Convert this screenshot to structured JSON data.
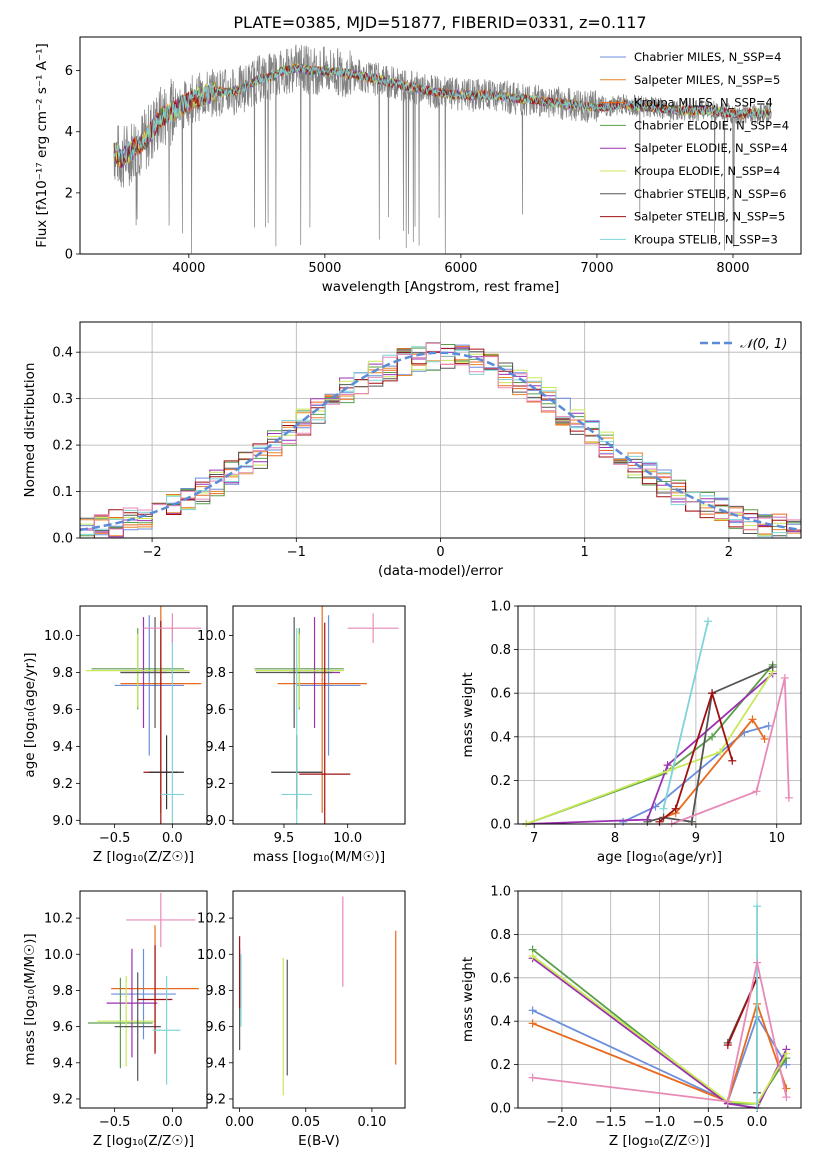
{
  "figure": {
    "title": "PLATE=0385, MJD=51877, FIBERID=0331, z=0.117"
  },
  "chart_data": [
    {
      "id": "spectrum",
      "type": "line",
      "xlabel": "wavelength [Angstrom, rest frame]",
      "ylabel": "Flux [fλ10⁻¹⁷ erg cm⁻² s⁻¹ A⁻¹]",
      "xlim": [
        3200,
        8500
      ],
      "ylim": [
        0,
        7.1
      ],
      "xticks": [
        4000,
        5000,
        6000,
        7000,
        8000
      ],
      "yticks": [
        0,
        2,
        4,
        6
      ],
      "grid": false,
      "legend_position": "right",
      "data_color": "#808080",
      "data_profile": {
        "x": [
          3450,
          3500,
          3560,
          3600,
          3680,
          3720,
          3800,
          3900,
          4000,
          4100,
          4200,
          4300,
          4400,
          4500,
          4600,
          4700,
          4800,
          4900,
          5000,
          5200,
          5400,
          5600,
          5800,
          6000,
          6200,
          6400,
          6600,
          6800,
          7000,
          7200,
          7400,
          7600,
          7800,
          8000,
          8200,
          8280
        ],
        "y": [
          3.4,
          3.1,
          3.3,
          3.5,
          3.7,
          4.0,
          4.5,
          4.7,
          5.0,
          5.2,
          5.3,
          5.3,
          5.4,
          5.7,
          5.8,
          6.0,
          6.1,
          6.0,
          6.0,
          5.9,
          5.7,
          5.5,
          5.3,
          5.2,
          5.2,
          5.1,
          5.0,
          4.9,
          4.8,
          4.9,
          4.8,
          4.7,
          4.7,
          4.6,
          4.6,
          4.6
        ]
      },
      "series": [
        {
          "name": "Chabrier MILES, N_SSP=4",
          "color": "#6b8fdc"
        },
        {
          "name": "Salpeter MILES, N_SSP=5",
          "color": "#e8862a"
        },
        {
          "name": "Kroupa MILES, N_SSP=4",
          "color": "#e86a1e"
        },
        {
          "name": "Chabrier ELODIE, N_SSP=4",
          "color": "#5a9e4a"
        },
        {
          "name": "Salpeter ELODIE, N_SSP=4",
          "color": "#9b30b0"
        },
        {
          "name": "Kroupa ELODIE, N_SSP=4",
          "color": "#c8e85a"
        },
        {
          "name": "Chabrier STELIB, N_SSP=6",
          "color": "#555555"
        },
        {
          "name": "Salpeter STELIB, N_SSP=5",
          "color": "#a01010"
        },
        {
          "name": "Kroupa STELIB, N_SSP=3",
          "color": "#7fd4d8"
        }
      ]
    },
    {
      "id": "residuals",
      "type": "histogram",
      "xlabel": "(data-model)/error",
      "ylabel": "Normed distribution",
      "xlim": [
        -2.5,
        2.5
      ],
      "ylim": [
        0,
        0.465
      ],
      "xticks": [
        -2,
        -1,
        0,
        1,
        2
      ],
      "xtick_labels": [
        "−2",
        "−1",
        "0",
        "1",
        "2"
      ],
      "yticks": [
        0.0,
        0.1,
        0.2,
        0.3,
        0.4
      ],
      "grid": true,
      "legend_position": "top-right",
      "normal_curve": {
        "name": "𝒩(0, 1)",
        "color": "#5b8bd9"
      },
      "bin_width": 0.1,
      "colors": [
        "#6b8fdc",
        "#e8862a",
        "#e86a1e",
        "#5a9e4a",
        "#9b30b0",
        "#c8e85a",
        "#555555",
        "#a01010",
        "#7fd4d8",
        "#e88ab8"
      ]
    },
    {
      "id": "age_vs_Z",
      "type": "scatter",
      "xlabel": "Z [log₁₀(Z/Z☉)]",
      "ylabel": "age  [log₁₀(age/yr)]",
      "xlim": [
        -0.8,
        0.3
      ],
      "ylim": [
        8.98,
        10.16
      ],
      "xticks": [
        -0.5,
        0.0
      ],
      "xtick_labels": [
        "−0.5",
        "0.0"
      ],
      "yticks": [
        9.0,
        9.2,
        9.4,
        9.6,
        9.8,
        10.0
      ],
      "grid": false,
      "points": [
        {
          "x": -0.2,
          "y": 9.73,
          "xerr": 0.3,
          "yerr": 0.38,
          "color": "#6b8fdc"
        },
        {
          "x": -0.1,
          "y": 9.74,
          "xerr": 0.35,
          "yerr": 0.7,
          "color": "#e86a1e"
        },
        {
          "x": -0.3,
          "y": 9.82,
          "xerr": 0.4,
          "yerr": 0.22,
          "color": "#5a9e4a"
        },
        {
          "x": -0.25,
          "y": 9.8,
          "xerr": 0.2,
          "yerr": 0.3,
          "color": "#9b30b0"
        },
        {
          "x": -0.3,
          "y": 9.81,
          "xerr": 0.45,
          "yerr": 0.2,
          "color": "#c8e85a"
        },
        {
          "x": -0.15,
          "y": 9.8,
          "xerr": 0.3,
          "yerr": 0.3,
          "color": "#555555"
        },
        {
          "x": -0.1,
          "y": 9.26,
          "xerr": 0.15,
          "yerr": 0.82,
          "color": "#a01010"
        },
        {
          "x": -0.05,
          "y": 9.26,
          "xerr": 0.15,
          "yerr": 0.2,
          "color": "#333333"
        },
        {
          "x": 0.0,
          "y": 9.14,
          "xerr": 0.1,
          "yerr": 0.9,
          "color": "#7fd4d8"
        },
        {
          "x": 0.0,
          "y": 10.04,
          "xerr": 0.25,
          "yerr": 0.08,
          "color": "#e88ab8"
        }
      ]
    },
    {
      "id": "age_vs_mass",
      "type": "scatter",
      "xlabel": "mass [log₁₀(M/M☉)]",
      "ylabel": "",
      "xlim": [
        9.1,
        10.45
      ],
      "ylim": [
        8.98,
        10.16
      ],
      "xticks": [
        9.5,
        10.0
      ],
      "xtick_labels": [
        "9.5",
        "10.0"
      ],
      "yticks": [
        9.0,
        9.2,
        9.4,
        9.6,
        9.8,
        10.0
      ],
      "grid": false,
      "points": [
        {
          "x": 9.85,
          "y": 9.73,
          "xerr": 0.25,
          "yerr": 0.38,
          "color": "#6b8fdc"
        },
        {
          "x": 9.8,
          "y": 9.74,
          "xerr": 0.35,
          "yerr": 0.7,
          "color": "#e86a1e"
        },
        {
          "x": 9.62,
          "y": 9.82,
          "xerr": 0.35,
          "yerr": 0.22,
          "color": "#5a9e4a"
        },
        {
          "x": 9.74,
          "y": 9.8,
          "xerr": 0.2,
          "yerr": 0.3,
          "color": "#9b30b0"
        },
        {
          "x": 9.62,
          "y": 9.81,
          "xerr": 0.35,
          "yerr": 0.2,
          "color": "#c8e85a"
        },
        {
          "x": 9.58,
          "y": 9.8,
          "xerr": 0.3,
          "yerr": 0.3,
          "color": "#555555"
        },
        {
          "x": 9.82,
          "y": 9.25,
          "xerr": 0.2,
          "yerr": 0.82,
          "color": "#a01010"
        },
        {
          "x": 9.6,
          "y": 9.26,
          "xerr": 0.2,
          "yerr": 0.2,
          "color": "#333333"
        },
        {
          "x": 9.6,
          "y": 9.14,
          "xerr": 0.12,
          "yerr": 0.9,
          "color": "#7fd4d8"
        },
        {
          "x": 10.2,
          "y": 10.04,
          "xerr": 0.2,
          "yerr": 0.08,
          "color": "#e88ab8"
        }
      ]
    },
    {
      "id": "weight_vs_age",
      "type": "line",
      "xlabel": "age  [log₁₀(age/yr)]",
      "ylabel": "mass weight",
      "xlim": [
        6.8,
        10.3
      ],
      "ylim": [
        0,
        1.0
      ],
      "xticks": [
        7,
        8,
        9,
        10
      ],
      "yticks": [
        0.0,
        0.2,
        0.4,
        0.6,
        0.8,
        1.0
      ],
      "grid": true,
      "series": [
        {
          "color": "#6b8fdc",
          "x": [
            8.1,
            8.5,
            9.6,
            9.9
          ],
          "y": [
            0.01,
            0.08,
            0.42,
            0.45
          ]
        },
        {
          "color": "#e86a1e",
          "x": [
            8.6,
            8.75,
            9.7,
            9.85
          ],
          "y": [
            0.03,
            0.05,
            0.48,
            0.39
          ]
        },
        {
          "color": "#5a9e4a",
          "x": [
            6.9,
            8.6,
            9.2,
            9.95
          ],
          "y": [
            0.0,
            0.23,
            0.4,
            0.73
          ]
        },
        {
          "color": "#9b30b0",
          "x": [
            6.9,
            8.4,
            8.65,
            9.95
          ],
          "y": [
            0.0,
            0.02,
            0.27,
            0.69
          ]
        },
        {
          "color": "#c8e85a",
          "x": [
            6.9,
            8.7,
            9.3,
            9.95
          ],
          "y": [
            0.0,
            0.25,
            0.33,
            0.7
          ]
        },
        {
          "color": "#555555",
          "x": [
            8.4,
            8.6,
            8.95,
            9.2,
            9.95
          ],
          "y": [
            0.01,
            0.03,
            0.01,
            0.6,
            0.72
          ]
        },
        {
          "color": "#a01010",
          "x": [
            8.55,
            8.75,
            9.2,
            9.45
          ],
          "y": [
            0.01,
            0.07,
            0.6,
            0.29
          ]
        },
        {
          "color": "#7fd4d8",
          "x": [
            8.6,
            9.15
          ],
          "y": [
            0.07,
            0.93
          ]
        },
        {
          "color": "#e88ab8",
          "x": [
            8.7,
            9.75,
            10.1,
            10.15
          ],
          "y": [
            0.0,
            0.15,
            0.67,
            0.12
          ]
        }
      ]
    },
    {
      "id": "mass_vs_Z",
      "type": "scatter",
      "xlabel": "Z [log₁₀(Z/Z☉)]",
      "ylabel": "mass [log₁₀(M/M☉)]",
      "xlim": [
        -0.8,
        0.3
      ],
      "ylim": [
        9.15,
        10.35
      ],
      "xticks": [
        -0.5,
        0.0
      ],
      "xtick_labels": [
        "−0.5",
        "0.0"
      ],
      "yticks": [
        9.2,
        9.4,
        9.6,
        9.8,
        10.0,
        10.2
      ],
      "grid": false,
      "points": [
        {
          "x": -0.25,
          "y": 9.78,
          "xerr": 0.28,
          "yerr": 0.25,
          "color": "#6b8fdc"
        },
        {
          "x": -0.15,
          "y": 9.81,
          "xerr": 0.38,
          "yerr": 0.35,
          "color": "#e86a1e"
        },
        {
          "x": -0.45,
          "y": 9.62,
          "xerr": 0.28,
          "yerr": 0.25,
          "color": "#5a9e4a"
        },
        {
          "x": -0.35,
          "y": 9.73,
          "xerr": 0.22,
          "yerr": 0.3,
          "color": "#9b30b0"
        },
        {
          "x": -0.4,
          "y": 9.63,
          "xerr": 0.25,
          "yerr": 0.25,
          "color": "#c8e85a"
        },
        {
          "x": -0.3,
          "y": 9.6,
          "xerr": 0.2,
          "yerr": 0.3,
          "color": "#555555"
        },
        {
          "x": -0.15,
          "y": 9.75,
          "xerr": 0.15,
          "yerr": 0.3,
          "color": "#a01010"
        },
        {
          "x": -0.05,
          "y": 9.58,
          "xerr": 0.12,
          "yerr": 0.3,
          "color": "#7fd4d8"
        },
        {
          "x": -0.1,
          "y": 10.19,
          "xerr": 0.3,
          "yerr": 0.15,
          "color": "#e88ab8"
        }
      ]
    },
    {
      "id": "mass_vs_ebv",
      "type": "scatter",
      "xlabel": "E(B-V)",
      "ylabel": "",
      "xlim": [
        -0.005,
        0.125
      ],
      "ylim": [
        9.15,
        10.35
      ],
      "xticks": [
        0.0,
        0.05,
        0.1
      ],
      "xtick_labels": [
        "0.00",
        "0.05",
        "0.10"
      ],
      "yticks": [
        9.2,
        9.4,
        9.6,
        9.8,
        10.0,
        10.2
      ],
      "grid": false,
      "points": [
        {
          "x": 0.0,
          "y": 9.75,
          "yerr": 0.28,
          "color": "#555555"
        },
        {
          "x": 0.0,
          "y": 9.9,
          "yerr": 0.2,
          "color": "#a01010"
        },
        {
          "x": 0.001,
          "y": 9.8,
          "yerr": 0.2,
          "color": "#7fd4d8"
        },
        {
          "x": 0.033,
          "y": 9.6,
          "yerr": 0.38,
          "color": "#c8e85a"
        },
        {
          "x": 0.036,
          "y": 9.65,
          "yerr": 0.32,
          "color": "#555555"
        },
        {
          "x": 0.078,
          "y": 10.07,
          "yerr": 0.25,
          "color": "#e88ab8"
        },
        {
          "x": 0.118,
          "y": 9.76,
          "yerr": 0.37,
          "color": "#e86a1e"
        }
      ]
    },
    {
      "id": "weight_vs_Z",
      "type": "line",
      "xlabel": "Z [log₁₀(Z/Z☉)]",
      "ylabel": "mass weight",
      "xlim": [
        -2.45,
        0.45
      ],
      "ylim": [
        0,
        1.0
      ],
      "xticks": [
        -2.0,
        -1.5,
        -1.0,
        -0.5,
        0.0
      ],
      "xtick_labels": [
        "−2.0",
        "−1.5",
        "−1.0",
        "−0.5",
        "0.0"
      ],
      "yticks": [
        0.0,
        0.2,
        0.4,
        0.6,
        0.8,
        1.0
      ],
      "grid": true,
      "series": [
        {
          "color": "#6b8fdc",
          "x": [
            -2.3,
            -0.3,
            0.0,
            0.3
          ],
          "y": [
            0.45,
            0.03,
            0.42,
            0.2
          ]
        },
        {
          "color": "#e86a1e",
          "x": [
            -2.3,
            -0.3,
            0.0,
            0.3
          ],
          "y": [
            0.39,
            0.03,
            0.48,
            0.09
          ]
        },
        {
          "color": "#5a9e4a",
          "x": [
            -2.3,
            -0.3,
            0.0,
            0.3
          ],
          "y": [
            0.73,
            0.02,
            0.02,
            0.23
          ]
        },
        {
          "color": "#9b30b0",
          "x": [
            -2.3,
            -0.3,
            0.0,
            0.3
          ],
          "y": [
            0.69,
            0.02,
            0.0,
            0.27
          ]
        },
        {
          "color": "#c8e85a",
          "x": [
            -2.3,
            -0.3,
            0.0,
            0.3
          ],
          "y": [
            0.7,
            0.03,
            0.02,
            0.25
          ]
        },
        {
          "color": "#555555",
          "x": [
            -0.3,
            0.0,
            0.0
          ],
          "y": [
            0.3,
            0.6,
            0.07
          ]
        },
        {
          "color": "#a01010",
          "x": [
            -0.3,
            0.0
          ],
          "y": [
            0.29,
            0.6
          ]
        },
        {
          "color": "#7fd4d8",
          "x": [
            0.0,
            0.0
          ],
          "y": [
            0.93,
            0.0
          ]
        },
        {
          "color": "#e88ab8",
          "x": [
            -2.3,
            -0.3,
            0.0,
            0.3
          ],
          "y": [
            0.14,
            0.03,
            0.67,
            0.05
          ]
        }
      ]
    }
  ]
}
